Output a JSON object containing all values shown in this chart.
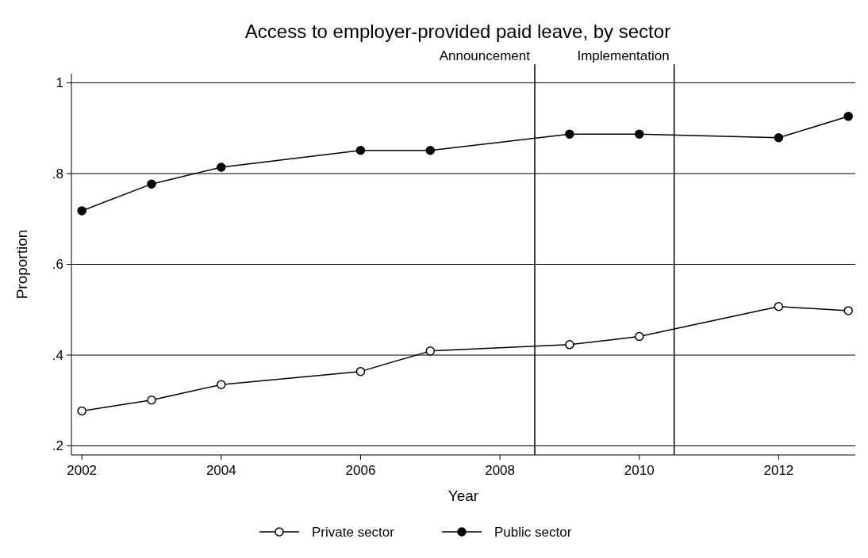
{
  "chart_data": {
    "type": "line",
    "title": "Access to employer-provided paid leave, by sector",
    "xlabel": "Year",
    "ylabel": "Proportion",
    "x": [
      2002,
      2003,
      2004,
      2006,
      2007,
      2009,
      2010,
      2012,
      2013
    ],
    "series": [
      {
        "name": "Private sector",
        "color": "#000000",
        "values": [
          0.277,
          0.301,
          0.335,
          0.364,
          0.409,
          0.423,
          0.441,
          0.507,
          0.498
        ]
      },
      {
        "name": "Public sector",
        "color": "#000000",
        "values": [
          0.718,
          0.777,
          0.814,
          0.851,
          0.851,
          0.887,
          0.887,
          0.879,
          0.926
        ]
      }
    ],
    "xlim": [
      2001.85,
      2013.1
    ],
    "xticks": [
      2002,
      2004,
      2006,
      2008,
      2010,
      2012
    ],
    "ylim": [
      0.18,
      1.02
    ],
    "yticks": [
      {
        "value": 0.2,
        "label": ".2"
      },
      {
        "value": 0.4,
        "label": ".4"
      },
      {
        "value": 0.6,
        "label": ".6"
      },
      {
        "value": 0.8,
        "label": ".8"
      },
      1
    ],
    "ref_lines": [
      {
        "axis": "x",
        "value": 2008.5,
        "label": "Announcement",
        "color": "#000000"
      },
      {
        "axis": "x",
        "value": 2010.5,
        "label": "Implementation",
        "color": "#000000"
      }
    ],
    "grid": "y",
    "legend": "bottom",
    "marker": "circle",
    "line_style": "solid"
  }
}
